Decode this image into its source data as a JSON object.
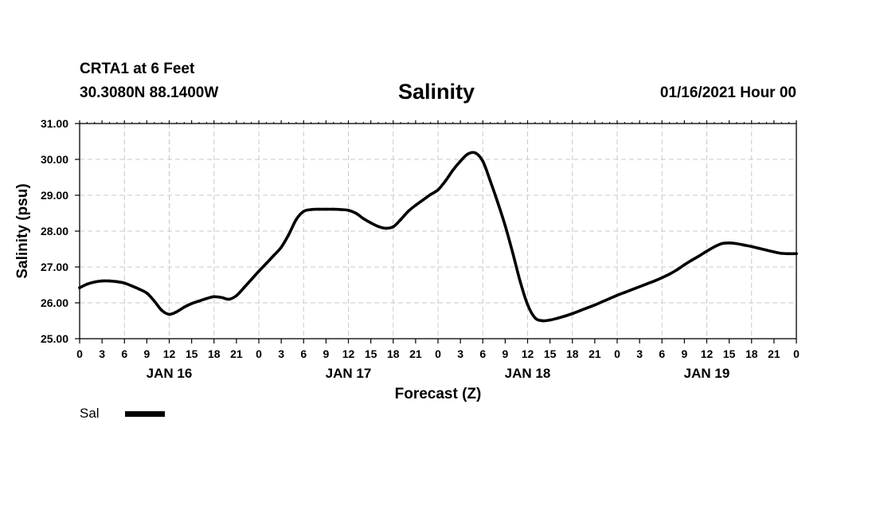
{
  "header": {
    "station": "CRTA1 at 6 Feet",
    "coords": "30.3080N 88.1400W",
    "title": "Salinity",
    "datetime": "01/16/2021 Hour 00"
  },
  "legend": {
    "label": "Sal"
  },
  "chart_data": {
    "type": "line",
    "title": "Salinity",
    "xlabel": "Forecast (Z)",
    "ylabel": "Salinity (psu)",
    "ylim": [
      25.0,
      31.0
    ],
    "xlim": [
      0,
      96
    ],
    "grid": true,
    "y_ticks": [
      "25.00",
      "26.00",
      "27.00",
      "28.00",
      "29.00",
      "30.00",
      "31.00"
    ],
    "x_ticks": [
      {
        "hour": 0,
        "label": "0"
      },
      {
        "hour": 3,
        "label": "3"
      },
      {
        "hour": 6,
        "label": "6"
      },
      {
        "hour": 9,
        "label": "9"
      },
      {
        "hour": 12,
        "label": "12"
      },
      {
        "hour": 15,
        "label": "15"
      },
      {
        "hour": 18,
        "label": "18"
      },
      {
        "hour": 21,
        "label": "21"
      },
      {
        "hour": 24,
        "label": "0"
      },
      {
        "hour": 27,
        "label": "3"
      },
      {
        "hour": 30,
        "label": "6"
      },
      {
        "hour": 33,
        "label": "9"
      },
      {
        "hour": 36,
        "label": "12"
      },
      {
        "hour": 39,
        "label": "15"
      },
      {
        "hour": 42,
        "label": "18"
      },
      {
        "hour": 45,
        "label": "21"
      },
      {
        "hour": 48,
        "label": "0"
      },
      {
        "hour": 51,
        "label": "3"
      },
      {
        "hour": 54,
        "label": "6"
      },
      {
        "hour": 57,
        "label": "9"
      },
      {
        "hour": 60,
        "label": "12"
      },
      {
        "hour": 63,
        "label": "15"
      },
      {
        "hour": 66,
        "label": "18"
      },
      {
        "hour": 69,
        "label": "21"
      },
      {
        "hour": 72,
        "label": "0"
      },
      {
        "hour": 75,
        "label": "3"
      },
      {
        "hour": 78,
        "label": "6"
      },
      {
        "hour": 81,
        "label": "9"
      },
      {
        "hour": 84,
        "label": "12"
      },
      {
        "hour": 87,
        "label": "15"
      },
      {
        "hour": 90,
        "label": "18"
      },
      {
        "hour": 93,
        "label": "21"
      },
      {
        "hour": 96,
        "label": "0"
      }
    ],
    "day_labels": [
      {
        "hour": 12,
        "label": "JAN 16"
      },
      {
        "hour": 36,
        "label": "JAN 17"
      },
      {
        "hour": 60,
        "label": "JAN 18"
      },
      {
        "hour": 84,
        "label": "JAN 19"
      }
    ],
    "series": [
      {
        "name": "Sal",
        "color": "#000000",
        "x": [
          0,
          1,
          2,
          3,
          4,
          5,
          6,
          7,
          8,
          9,
          10,
          11,
          12,
          13,
          14,
          15,
          16,
          17,
          18,
          19,
          20,
          21,
          22,
          23,
          24,
          25,
          26,
          27,
          28,
          29,
          30,
          31,
          32,
          33,
          34,
          35,
          36,
          37,
          38,
          39,
          40,
          41,
          42,
          43,
          44,
          45,
          46,
          47,
          48,
          49,
          50,
          51,
          52,
          53,
          54,
          55,
          56,
          57,
          58,
          59,
          60,
          61,
          62,
          63,
          64,
          65,
          66,
          67,
          68,
          69,
          70,
          71,
          72,
          73,
          74,
          75,
          76,
          77,
          78,
          79,
          80,
          81,
          82,
          83,
          84,
          85,
          86,
          87,
          88,
          89,
          90,
          91,
          92,
          93,
          94,
          95,
          96
        ],
        "values": [
          26.42,
          26.52,
          26.58,
          26.61,
          26.61,
          26.59,
          26.55,
          26.47,
          26.38,
          26.27,
          26.05,
          25.79,
          25.68,
          25.75,
          25.88,
          25.98,
          26.05,
          26.12,
          26.17,
          26.15,
          26.1,
          26.2,
          26.42,
          26.65,
          26.88,
          27.1,
          27.32,
          27.55,
          27.9,
          28.32,
          28.55,
          28.6,
          28.61,
          28.61,
          28.61,
          28.6,
          28.58,
          28.5,
          28.35,
          28.23,
          28.13,
          28.08,
          28.12,
          28.32,
          28.55,
          28.72,
          28.87,
          29.02,
          29.15,
          29.4,
          29.7,
          29.95,
          30.15,
          30.18,
          29.95,
          29.4,
          28.8,
          28.15,
          27.4,
          26.6,
          25.95,
          25.58,
          25.5,
          25.52,
          25.57,
          25.63,
          25.7,
          25.78,
          25.86,
          25.94,
          26.03,
          26.12,
          26.21,
          26.29,
          26.37,
          26.45,
          26.53,
          26.61,
          26.7,
          26.8,
          26.92,
          27.06,
          27.19,
          27.31,
          27.44,
          27.56,
          27.65,
          27.67,
          27.65,
          27.61,
          27.57,
          27.52,
          27.47,
          27.42,
          27.38,
          27.37,
          27.37
        ]
      }
    ]
  }
}
